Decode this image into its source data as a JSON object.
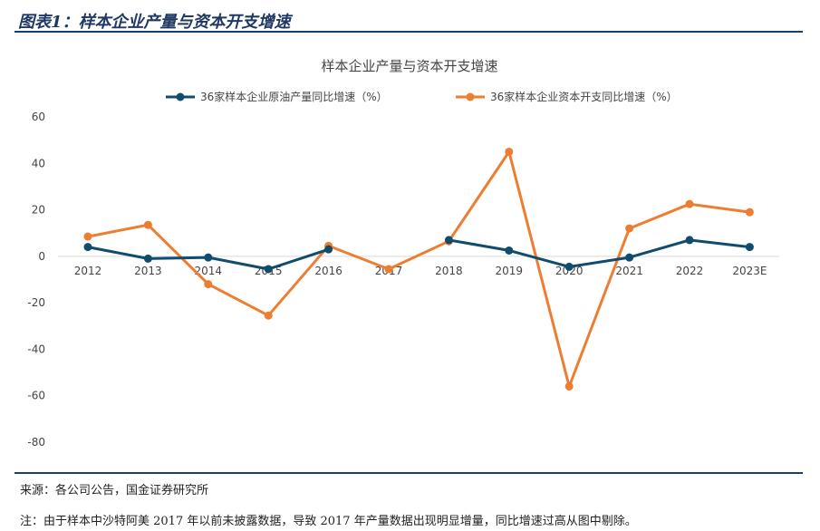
{
  "figure": {
    "label": "图表1：样本企业产量与资本开支增速",
    "source": "来源：各公司公告，国金证券研究所",
    "note": "注：由于样本中沙特阿美 2017 年以前未披露数据，导致 2017 年产量数据出现明显增量，同比增速过高从图中剔除。"
  },
  "colors": {
    "production": "#0f4c6e",
    "capex": "#ed7d31",
    "rule": "#14416b",
    "zero_axis": "#d9d9d9"
  },
  "chart_data": {
    "type": "line",
    "title": "样本企业产量与资本开支增速",
    "xlabel": "",
    "ylabel": "",
    "categories": [
      "2012",
      "2013",
      "2014",
      "2015",
      "2016",
      "2017",
      "2018",
      "2019",
      "2020",
      "2021",
      "2022",
      "2023E"
    ],
    "ylim": [
      -80,
      60
    ],
    "yticks": [
      60,
      40,
      20,
      0,
      -20,
      -40,
      -60,
      -80
    ],
    "grid": false,
    "legend_position": "top-center",
    "series": [
      {
        "name": "36家样本企业原油产量同比增速（%）",
        "color_key": "production",
        "values": [
          4,
          -1,
          -0.5,
          -5.5,
          3,
          null,
          7,
          2.5,
          -4.5,
          -0.5,
          7,
          4
        ]
      },
      {
        "name": "36家样本企业资本开支同比增速（%）",
        "color_key": "capex",
        "values": [
          8.5,
          13.5,
          -12,
          -25.5,
          4.5,
          -5.5,
          6.5,
          45,
          -56,
          12,
          22.5,
          19
        ]
      }
    ]
  }
}
